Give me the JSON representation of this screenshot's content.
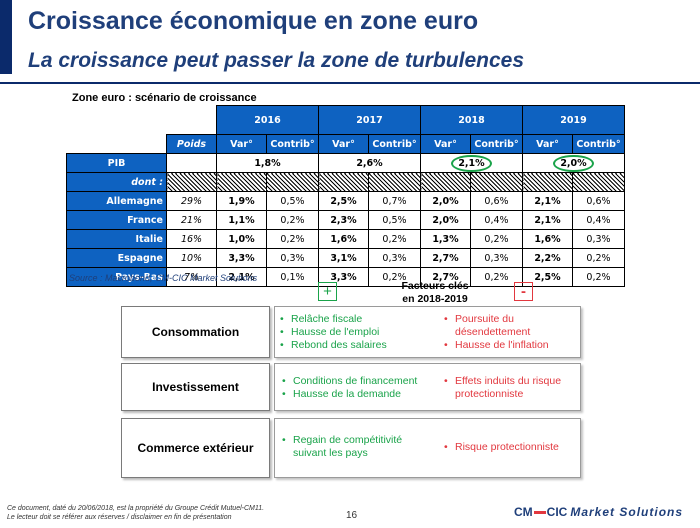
{
  "header": {
    "title": "Croissance économique en zone euro",
    "subtitle": "La croissance peut passer la zone de turbulences"
  },
  "table": {
    "caption": "Zone euro : scénario de croissance",
    "years": [
      "2016",
      "2017",
      "2018",
      "2019"
    ],
    "poids_label": "Poids",
    "var_label": "Var°",
    "contrib_label": "Contrib°",
    "pib": {
      "label": "PIB",
      "values": [
        "1,8%",
        "2,6%",
        "2,1%",
        "2,0%"
      ]
    },
    "dont_label": "dont :",
    "rows": [
      {
        "label": "Allemagne",
        "poids": "29%",
        "cells": [
          "1,9%",
          "0,5%",
          "2,5%",
          "0,7%",
          "2,0%",
          "0,6%",
          "2,1%",
          "0,6%"
        ]
      },
      {
        "label": "France",
        "poids": "21%",
        "cells": [
          "1,1%",
          "0,2%",
          "2,3%",
          "0,5%",
          "2,0%",
          "0,4%",
          "2,1%",
          "0,4%"
        ]
      },
      {
        "label": "Italie",
        "poids": "16%",
        "cells": [
          "1,0%",
          "0,2%",
          "1,6%",
          "0,2%",
          "1,3%",
          "0,2%",
          "1,6%",
          "0,3%"
        ]
      },
      {
        "label": "Espagne",
        "poids": "10%",
        "cells": [
          "3,3%",
          "0,3%",
          "3,1%",
          "0,3%",
          "2,7%",
          "0,3%",
          "2,2%",
          "0,2%"
        ]
      },
      {
        "label": "Pays-Bas",
        "poids": "7%",
        "cells": [
          "2,1%",
          "0,1%",
          "3,3%",
          "0,2%",
          "2,7%",
          "0,2%",
          "2,5%",
          "0,2%"
        ]
      }
    ],
    "source": "Source : Macrobond, CM-CIC Market Solutions"
  },
  "factors": {
    "plus": "+",
    "minus": "-",
    "title_line1": "Facteurs clés",
    "title_line2": "en 2018-2019",
    "rows": [
      {
        "label": "Consommation",
        "positives": [
          "Relâche fiscale",
          "Hausse de l'emploi",
          "Rebond des salaires"
        ],
        "negatives": [
          "Poursuite du désendettement",
          "Hausse de l'inflation"
        ]
      },
      {
        "label": "Investissement",
        "positives": [
          "Conditions de financement",
          "Hausse de la demande"
        ],
        "negatives": [
          "Effets induits du risque protectionniste"
        ]
      },
      {
        "label": "Commerce extérieur",
        "positives": [
          "Regain de compétitivité suivant les pays"
        ],
        "negatives": [
          "Risque protectionniste"
        ]
      }
    ]
  },
  "footer": {
    "disclaimer_line1": "Ce document, daté du 20/06/2018, est la propriété du Groupe Crédit Mutuel-CM11.",
    "disclaimer_line2": "Le lecteur doit se référer aux réserves / disclaimer en fin de présentation",
    "page": "16",
    "logo_cm": "CM",
    "logo_cic": "CIC",
    "logo_ms": "Market Solutions"
  },
  "colors": {
    "accent_blue": "#0e62c1",
    "positive": "#1aa34a",
    "negative": "#e2383f"
  }
}
